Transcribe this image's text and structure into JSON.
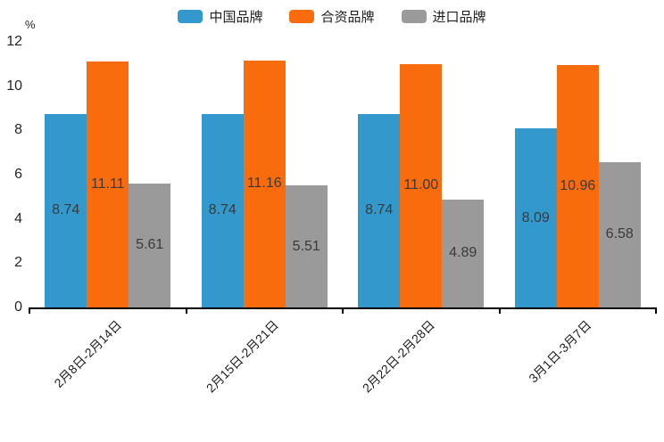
{
  "chart_data": {
    "type": "bar",
    "title": "",
    "unit_label": "%",
    "legend_position": "top",
    "grid": false,
    "value_labels_shown": true,
    "ylim": [
      0,
      12
    ],
    "yticks": [
      0,
      2,
      4,
      6,
      8,
      10,
      12
    ],
    "categories": [
      "2月8日-2月14日",
      "2月15日-2月21日",
      "2月22日-2月28日",
      "3月1日-3月7日"
    ],
    "series": [
      {
        "name": "中国品牌",
        "key": "china-brand",
        "color": "#3398CB",
        "values": [
          8.74,
          8.74,
          8.74,
          8.09
        ],
        "labels": [
          "8.74",
          "8.74",
          "8.74",
          "8.09"
        ]
      },
      {
        "name": "合资品牌",
        "key": "joint-venture-brand",
        "color": "#F96C0E",
        "values": [
          11.11,
          11.16,
          11.0,
          10.96
        ],
        "labels": [
          "11.11",
          "11.16",
          "11.00",
          "10.96"
        ]
      },
      {
        "name": "进口品牌",
        "key": "import-brand",
        "color": "#9A9A9A",
        "values": [
          5.61,
          5.51,
          4.89,
          6.58
        ],
        "labels": [
          "5.61",
          "5.51",
          "4.89",
          "6.58"
        ]
      }
    ]
  }
}
